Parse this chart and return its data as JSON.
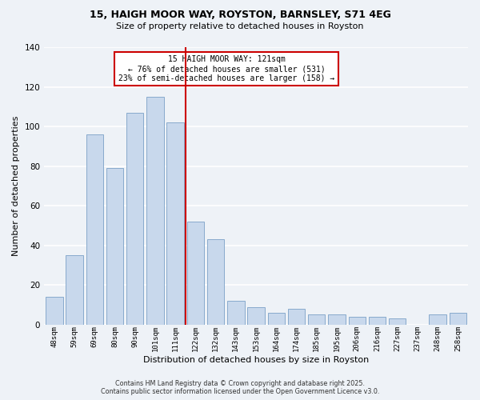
{
  "title_line1": "15, HAIGH MOOR WAY, ROYSTON, BARNSLEY, S71 4EG",
  "title_line2": "Size of property relative to detached houses in Royston",
  "xlabel": "Distribution of detached houses by size in Royston",
  "ylabel": "Number of detached properties",
  "bar_labels": [
    "48sqm",
    "59sqm",
    "69sqm",
    "80sqm",
    "90sqm",
    "101sqm",
    "111sqm",
    "122sqm",
    "132sqm",
    "143sqm",
    "153sqm",
    "164sqm",
    "174sqm",
    "185sqm",
    "195sqm",
    "206sqm",
    "216sqm",
    "227sqm",
    "237sqm",
    "248sqm",
    "258sqm"
  ],
  "bar_values": [
    14,
    35,
    96,
    79,
    107,
    115,
    102,
    52,
    43,
    12,
    9,
    6,
    8,
    5,
    5,
    4,
    4,
    3,
    0,
    5,
    6
  ],
  "bar_color": "#c8d8ec",
  "bar_edge_color": "#88aacc",
  "vline_x_index": 7,
  "vline_color": "#cc0000",
  "ylim": [
    0,
    140
  ],
  "yticks": [
    0,
    20,
    40,
    60,
    80,
    100,
    120,
    140
  ],
  "annotation_title": "15 HAIGH MOOR WAY: 121sqm",
  "annotation_line2": "← 76% of detached houses are smaller (531)",
  "annotation_line3": "23% of semi-detached houses are larger (158) →",
  "footer_line1": "Contains HM Land Registry data © Crown copyright and database right 2025.",
  "footer_line2": "Contains public sector information licensed under the Open Government Licence v3.0.",
  "background_color": "#eef2f7",
  "grid_color": "#d8e4f0"
}
